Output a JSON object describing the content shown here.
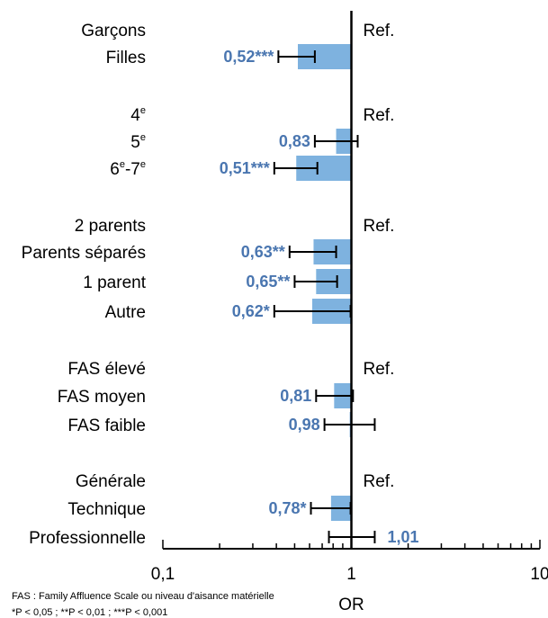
{
  "chart_data": {
    "type": "bar",
    "orientation": "horizontal",
    "xscale": "log",
    "xlim": [
      0.1,
      10
    ],
    "xticks": [
      "0,1",
      "1",
      "10"
    ],
    "xlabel": "OR",
    "reference_line": 1,
    "bar_color": "#7eb2df",
    "label_color": "#4a76b0",
    "ref_label": "Ref.",
    "rows": [
      {
        "label": "Garçons",
        "sup": "",
        "ref": true
      },
      {
        "label": "Filles",
        "sup": "",
        "or": 0.52,
        "ci": [
          0.41,
          0.64
        ],
        "text": "0,52***"
      },
      {
        "label": "4",
        "sup": "e",
        "ref": true
      },
      {
        "label": "5",
        "sup": "e",
        "or": 0.83,
        "ci": [
          0.64,
          1.08
        ],
        "text": "0,83"
      },
      {
        "label": "6",
        "sup": "e",
        "label2": "-7",
        "sup2": "e",
        "or": 0.51,
        "ci": [
          0.39,
          0.66
        ],
        "text": "0,51***"
      },
      {
        "label": "2 parents",
        "sup": "",
        "ref": true
      },
      {
        "label": "Parents séparés",
        "sup": "",
        "or": 0.63,
        "ci": [
          0.47,
          0.83
        ],
        "text": "0,63**"
      },
      {
        "label": "1 parent",
        "sup": "",
        "or": 0.65,
        "ci": [
          0.5,
          0.84
        ],
        "text": "0,65**"
      },
      {
        "label": "Autre",
        "sup": "",
        "or": 0.62,
        "ci": [
          0.39,
          0.99
        ],
        "text": "0,62*"
      },
      {
        "label": "FAS élevé",
        "sup": "",
        "ref": true
      },
      {
        "label": "FAS moyen",
        "sup": "",
        "or": 0.81,
        "ci": [
          0.65,
          1.02
        ],
        "text": "0,81"
      },
      {
        "label": "FAS faible",
        "sup": "",
        "or": 0.98,
        "ci": [
          0.72,
          1.33
        ],
        "text": "0,98"
      },
      {
        "label": "Générale",
        "sup": "",
        "ref": true
      },
      {
        "label": "Technique",
        "sup": "",
        "or": 0.78,
        "ci": [
          0.61,
          0.99
        ],
        "text": "0,78*"
      },
      {
        "label": "Professionnelle",
        "sup": "",
        "or": 1.01,
        "ci": [
          0.76,
          1.33
        ],
        "text": "1,01"
      }
    ]
  },
  "footnotes": {
    "line1": "FAS : Family Affluence Scale ou niveau d'aisance matérielle",
    "line2": "*P < 0,05 ; **P < 0,01 ; ***P < 0,001"
  }
}
